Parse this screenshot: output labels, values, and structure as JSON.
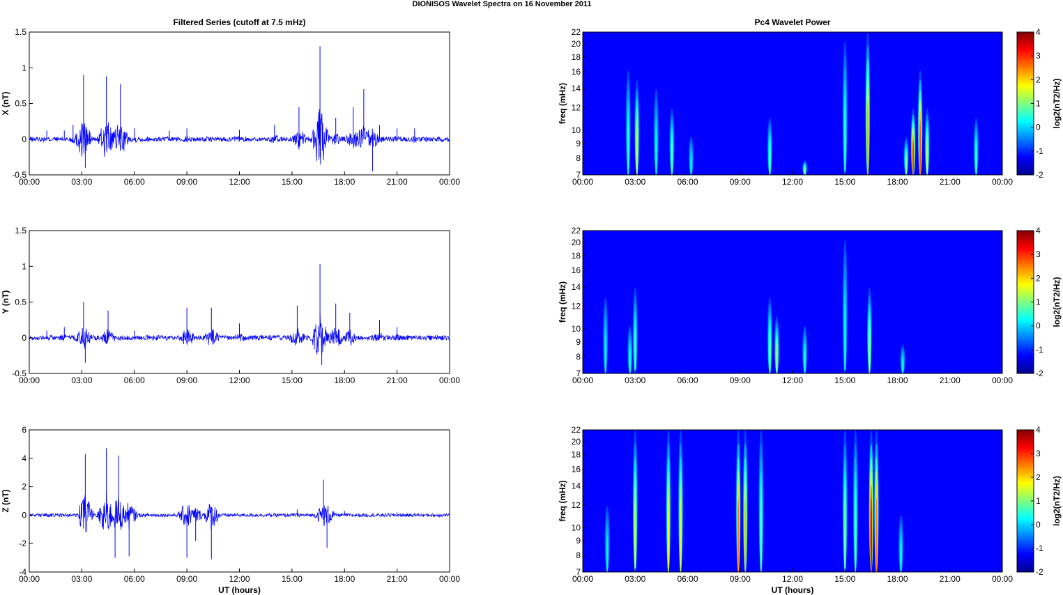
{
  "figure_title": "DIONISOS Wavelet Spectra on 16 November  2011",
  "chart_data": [
    {
      "type": "line",
      "panel": "X",
      "title": "Filtered Series (cutoff at 7.5 mHz)",
      "xlabel": "",
      "ylabel": "X (nT)",
      "xlim": [
        0,
        24
      ],
      "ylim": [
        -0.5,
        1.5
      ],
      "xticks": [
        "00:00",
        "03:00",
        "06:00",
        "09:00",
        "12:00",
        "15:00",
        "18:00",
        "21:00",
        "00:00"
      ],
      "yticks": [
        "-0.5",
        "0",
        "0.5",
        "1",
        "1.5"
      ],
      "color": "#0000ff",
      "series": [
        {
          "values": [
            [
              0,
              0.1
            ],
            [
              1,
              0.12
            ],
            [
              2,
              0.12
            ],
            [
              2.5,
              0.2
            ],
            [
              3.1,
              0.9
            ],
            [
              3.2,
              -0.4
            ],
            [
              4.4,
              0.88
            ],
            [
              5.2,
              0.77
            ],
            [
              6,
              0.15
            ],
            [
              8,
              0.12
            ],
            [
              9,
              0.15
            ],
            [
              12,
              0.13
            ],
            [
              14,
              0.2
            ],
            [
              15.4,
              0.45
            ],
            [
              16.6,
              1.3
            ],
            [
              16.6,
              -0.25
            ],
            [
              17.5,
              0.3
            ],
            [
              18.5,
              0.45
            ],
            [
              19.1,
              0.7
            ],
            [
              19.6,
              -0.45
            ],
            [
              20,
              0.2
            ],
            [
              21,
              0.15
            ],
            [
              22,
              0.15
            ],
            [
              24,
              0.1
            ]
          ]
        }
      ]
    },
    {
      "type": "heatmap",
      "panel": "X",
      "title": "Pc4 Wavelet Power",
      "xlabel": "",
      "ylabel": "freq (mHz)",
      "xlim": [
        0,
        24
      ],
      "ylim": [
        7,
        22
      ],
      "xticks": [
        "00:00",
        "03:00",
        "06:00",
        "09:00",
        "12:00",
        "15:00",
        "18:00",
        "21:00",
        "00:00"
      ],
      "yticks": [
        "7",
        "8",
        "9",
        "10",
        "12",
        "14",
        "16",
        "18",
        "20",
        "22"
      ],
      "colorbar": {
        "label": "log2(nT2/Hz)",
        "ticks": [
          "4",
          "3",
          "2",
          "1",
          "0",
          "-1",
          "-2"
        ],
        "range": [
          -2,
          4
        ]
      },
      "events": [
        {
          "t": 2.6,
          "fmax": 18,
          "level": 0.5
        },
        {
          "t": 3.1,
          "fmax": 17,
          "level": 1.5
        },
        {
          "t": 4.2,
          "fmax": 16,
          "level": 0.3
        },
        {
          "t": 5.1,
          "fmax": 14,
          "level": 0.8
        },
        {
          "t": 6.2,
          "fmax": 11,
          "level": 0.2
        },
        {
          "t": 10.7,
          "fmax": 13,
          "level": 0.8
        },
        {
          "t": 12.7,
          "fmax": 8.5,
          "level": 1.0
        },
        {
          "t": 15.0,
          "fmax": 21,
          "level": 0.5
        },
        {
          "t": 16.3,
          "fmax": 22,
          "level": 2.3
        },
        {
          "t": 18.5,
          "fmax": 11,
          "level": 1.0
        },
        {
          "t": 18.9,
          "fmax": 14,
          "level": 3.0
        },
        {
          "t": 19.3,
          "fmax": 18,
          "level": 2.8
        },
        {
          "t": 19.7,
          "fmax": 14,
          "level": 1.5
        },
        {
          "t": 22.5,
          "fmax": 13,
          "level": 0.6
        }
      ]
    },
    {
      "type": "line",
      "panel": "Y",
      "title": "",
      "xlabel": "",
      "ylabel": "Y (nT)",
      "xlim": [
        0,
        24
      ],
      "ylim": [
        -0.5,
        1.5
      ],
      "xticks": [
        "00:00",
        "03:00",
        "06:00",
        "09:00",
        "12:00",
        "15:00",
        "18:00",
        "21:00",
        "00:00"
      ],
      "yticks": [
        "-0.5",
        "0",
        "0.5",
        "1",
        "1.5"
      ],
      "color": "#0000ff",
      "series": [
        {
          "values": [
            [
              0,
              0.08
            ],
            [
              1,
              0.1
            ],
            [
              2,
              0.15
            ],
            [
              3.1,
              0.5
            ],
            [
              3.2,
              -0.35
            ],
            [
              4.5,
              0.38
            ],
            [
              6,
              0.1
            ],
            [
              9,
              0.42
            ],
            [
              10.4,
              0.42
            ],
            [
              12,
              0.2
            ],
            [
              15.3,
              0.45
            ],
            [
              16.6,
              1.03
            ],
            [
              16.7,
              -0.38
            ],
            [
              17.5,
              0.48
            ],
            [
              18.3,
              0.35
            ],
            [
              20,
              0.25
            ],
            [
              21,
              0.15
            ],
            [
              24,
              0.08
            ]
          ]
        }
      ]
    },
    {
      "type": "heatmap",
      "panel": "Y",
      "title": "",
      "xlabel": "",
      "ylabel": "freq (mHz)",
      "xlim": [
        0,
        24
      ],
      "ylim": [
        7,
        22
      ],
      "xticks": [
        "00:00",
        "03:00",
        "06:00",
        "09:00",
        "12:00",
        "15:00",
        "18:00",
        "21:00",
        "00:00"
      ],
      "yticks": [
        "7",
        "8",
        "9",
        "10",
        "12",
        "14",
        "16",
        "18",
        "20",
        "22"
      ],
      "colorbar": {
        "label": "log2(nT2/Hz)",
        "ticks": [
          "4",
          "3",
          "2",
          "1",
          "0",
          "-1",
          "-2"
        ],
        "range": [
          -2,
          4
        ]
      },
      "events": [
        {
          "t": 1.3,
          "fmax": 15,
          "level": 0.2
        },
        {
          "t": 2.7,
          "fmax": 12,
          "level": 0.4
        },
        {
          "t": 3.0,
          "fmax": 16,
          "level": 0.6
        },
        {
          "t": 10.7,
          "fmax": 15,
          "level": 1.0
        },
        {
          "t": 11.1,
          "fmax": 13,
          "level": 1.2
        },
        {
          "t": 12.7,
          "fmax": 12,
          "level": 0.4
        },
        {
          "t": 15.0,
          "fmax": 21,
          "level": 0.3
        },
        {
          "t": 16.4,
          "fmax": 16,
          "level": 1.3
        },
        {
          "t": 18.3,
          "fmax": 10,
          "level": 0.3
        }
      ]
    },
    {
      "type": "line",
      "panel": "Z",
      "title": "",
      "xlabel": "UT (hours)",
      "ylabel": "Z (nT)",
      "xlim": [
        0,
        24
      ],
      "ylim": [
        -4,
        6
      ],
      "xticks": [
        "00:00",
        "03:00",
        "06:00",
        "09:00",
        "12:00",
        "15:00",
        "18:00",
        "21:00",
        "00:00"
      ],
      "yticks": [
        "-4",
        "-2",
        "0",
        "2",
        "4",
        "6"
      ],
      "color": "#0000ff",
      "series": [
        {
          "values": [
            [
              0,
              0.05
            ],
            [
              3.2,
              4.3
            ],
            [
              3.3,
              -0.4
            ],
            [
              4.4,
              4.7
            ],
            [
              4.9,
              -3.0
            ],
            [
              5.1,
              4.2
            ],
            [
              5.7,
              -2.9
            ],
            [
              9.0,
              -3.0
            ],
            [
              9.5,
              -1.8
            ],
            [
              10.4,
              -3.1
            ],
            [
              15.3,
              0.4
            ],
            [
              16.8,
              2.5
            ],
            [
              17.0,
              -2.3
            ],
            [
              18,
              0.3
            ],
            [
              21,
              0.2
            ],
            [
              24,
              0.05
            ]
          ]
        }
      ]
    },
    {
      "type": "heatmap",
      "panel": "Z",
      "title": "",
      "xlabel": "UT (hours)",
      "ylabel": "freq (mHz)",
      "xlim": [
        0,
        24
      ],
      "ylim": [
        7,
        22
      ],
      "xticks": [
        "00:00",
        "03:00",
        "06:00",
        "09:00",
        "12:00",
        "15:00",
        "18:00",
        "21:00",
        "00:00"
      ],
      "yticks": [
        "7",
        "8",
        "9",
        "10",
        "12",
        "14",
        "16",
        "18",
        "20",
        "22"
      ],
      "colorbar": {
        "label": "log2(nT2/Hz)",
        "ticks": [
          "4",
          "3",
          "2",
          "1",
          "0",
          "-1",
          "-2"
        ],
        "range": [
          -2,
          4
        ]
      },
      "events": [
        {
          "t": 1.4,
          "fmax": 14,
          "level": 0.2
        },
        {
          "t": 3.0,
          "fmax": 22,
          "level": 1.6
        },
        {
          "t": 4.9,
          "fmax": 22,
          "level": 1.8
        },
        {
          "t": 5.6,
          "fmax": 22,
          "level": 1.6
        },
        {
          "t": 8.9,
          "fmax": 22,
          "level": 2.6
        },
        {
          "t": 9.3,
          "fmax": 22,
          "level": 2.2
        },
        {
          "t": 10.2,
          "fmax": 22,
          "level": 0.8
        },
        {
          "t": 15.0,
          "fmax": 22,
          "level": 1.0
        },
        {
          "t": 15.6,
          "fmax": 22,
          "level": 0.8
        },
        {
          "t": 16.5,
          "fmax": 22,
          "level": 3.6
        },
        {
          "t": 16.8,
          "fmax": 22,
          "level": 2.6
        },
        {
          "t": 18.2,
          "fmax": 13,
          "level": 0.3
        }
      ]
    }
  ]
}
